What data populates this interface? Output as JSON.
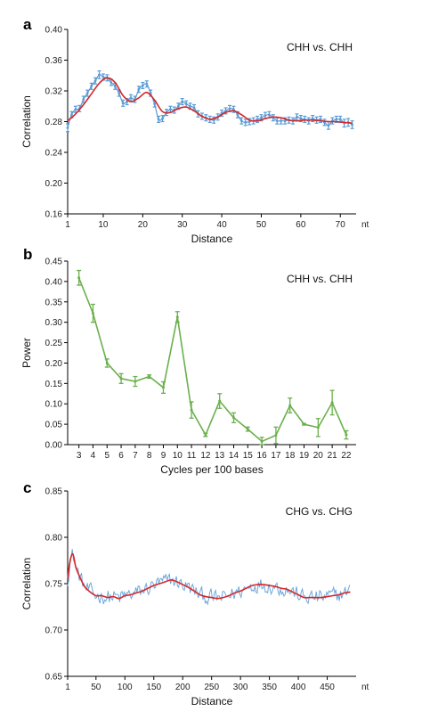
{
  "chart_data": [
    {
      "type": "line",
      "panel_label": "a",
      "title": "CHH vs. CHH",
      "xlabel": "Distance",
      "ylabel": "Correlation",
      "x_unit": "nt",
      "xlim": [
        1,
        74
      ],
      "ylim": [
        0.16,
        0.4
      ],
      "xticks": [
        1,
        10,
        20,
        30,
        40,
        50,
        60,
        70
      ],
      "yticks": [
        "0.16",
        "0.20",
        "0.24",
        "0.28",
        "0.32",
        "0.36",
        "0.40"
      ],
      "grid": false,
      "series": [
        {
          "style": "points-with-error-bars",
          "color": "#5b9bd5",
          "x": [
            1,
            2,
            3,
            4,
            5,
            6,
            7,
            8,
            9,
            10,
            11,
            12,
            13,
            14,
            15,
            16,
            17,
            18,
            19,
            20,
            21,
            22,
            23,
            24,
            25,
            26,
            27,
            28,
            29,
            30,
            31,
            32,
            33,
            34,
            35,
            36,
            37,
            38,
            39,
            40,
            41,
            42,
            43,
            44,
            45,
            46,
            47,
            48,
            49,
            50,
            51,
            52,
            53,
            54,
            55,
            56,
            57,
            58,
            59,
            60,
            61,
            62,
            63,
            64,
            65,
            66,
            67,
            68,
            69,
            70,
            71,
            72,
            73
          ],
          "y": [
            0.272,
            0.289,
            0.296,
            0.297,
            0.309,
            0.317,
            0.326,
            0.333,
            0.341,
            0.338,
            0.337,
            0.331,
            0.326,
            0.317,
            0.304,
            0.306,
            0.311,
            0.309,
            0.322,
            0.327,
            0.329,
            0.317,
            0.303,
            0.283,
            0.284,
            0.292,
            0.296,
            0.295,
            0.3,
            0.306,
            0.303,
            0.3,
            0.298,
            0.29,
            0.287,
            0.285,
            0.283,
            0.282,
            0.286,
            0.291,
            0.294,
            0.297,
            0.296,
            0.289,
            0.281,
            0.279,
            0.28,
            0.281,
            0.283,
            0.285,
            0.288,
            0.289,
            0.285,
            0.281,
            0.281,
            0.281,
            0.282,
            0.281,
            0.286,
            0.284,
            0.283,
            0.281,
            0.284,
            0.282,
            0.283,
            0.279,
            0.275,
            0.281,
            0.283,
            0.283,
            0.278,
            0.279,
            0.276
          ],
          "err": [
            0.005,
            0.004,
            0.004,
            0.004,
            0.004,
            0.004,
            0.004,
            0.004,
            0.005,
            0.004,
            0.004,
            0.004,
            0.004,
            0.004,
            0.004,
            0.004,
            0.004,
            0.004,
            0.004,
            0.004,
            0.004,
            0.004,
            0.004,
            0.004,
            0.004,
            0.004,
            0.004,
            0.004,
            0.004,
            0.004,
            0.004,
            0.004,
            0.004,
            0.004,
            0.004,
            0.004,
            0.004,
            0.004,
            0.004,
            0.004,
            0.004,
            0.004,
            0.004,
            0.004,
            0.004,
            0.004,
            0.004,
            0.004,
            0.004,
            0.004,
            0.004,
            0.004,
            0.004,
            0.004,
            0.004,
            0.004,
            0.004,
            0.004,
            0.004,
            0.004,
            0.004,
            0.004,
            0.004,
            0.004,
            0.004,
            0.004,
            0.005,
            0.004,
            0.004,
            0.004,
            0.005,
            0.005,
            0.005
          ]
        },
        {
          "style": "smooth-line",
          "color": "#d62728",
          "x": [
            1,
            3,
            5,
            7,
            9,
            11,
            13,
            15,
            17,
            19,
            21,
            23,
            25,
            27,
            29,
            31,
            33,
            35,
            37,
            39,
            41,
            43,
            45,
            47,
            49,
            51,
            53,
            55,
            57,
            59,
            61,
            63,
            65,
            67,
            69,
            71,
            73
          ],
          "y": [
            0.281,
            0.29,
            0.302,
            0.316,
            0.33,
            0.337,
            0.331,
            0.314,
            0.306,
            0.311,
            0.318,
            0.308,
            0.293,
            0.292,
            0.297,
            0.299,
            0.294,
            0.287,
            0.283,
            0.286,
            0.292,
            0.294,
            0.289,
            0.282,
            0.281,
            0.284,
            0.286,
            0.285,
            0.282,
            0.281,
            0.282,
            0.282,
            0.281,
            0.28,
            0.28,
            0.279,
            0.278
          ]
        }
      ]
    },
    {
      "type": "line",
      "panel_label": "b",
      "title": "CHH vs. CHH",
      "xlabel": "Cycles per 100 bases",
      "ylabel": "Power",
      "xlim": [
        2.2,
        22.7
      ],
      "ylim": [
        0,
        0.45
      ],
      "xticks": [
        3,
        4,
        5,
        6,
        7,
        8,
        9,
        10,
        11,
        12,
        13,
        14,
        15,
        16,
        17,
        18,
        19,
        20,
        21,
        22
      ],
      "yticks": [
        "0.00",
        "0.05",
        "0.10",
        "0.15",
        "0.20",
        "0.25",
        "0.30",
        "0.35",
        "0.40",
        "0.45"
      ],
      "grid": false,
      "series": [
        {
          "style": "line-with-error-bars",
          "color": "#6ab04c",
          "x": [
            3,
            4,
            5,
            6,
            7,
            8,
            9,
            10,
            11,
            12,
            13,
            14,
            15,
            16,
            17,
            18,
            19,
            20,
            21,
            22
          ],
          "y": [
            0.409,
            0.322,
            0.2,
            0.162,
            0.155,
            0.167,
            0.14,
            0.313,
            0.085,
            0.024,
            0.107,
            0.066,
            0.038,
            0.008,
            0.023,
            0.096,
            0.05,
            0.042,
            0.103,
            0.024
          ],
          "err": [
            0.018,
            0.022,
            0.01,
            0.012,
            0.012,
            0.004,
            0.014,
            0.013,
            0.02,
            0.004,
            0.018,
            0.012,
            0.005,
            0.01,
            0.02,
            0.018,
            0.002,
            0.022,
            0.03,
            0.01
          ]
        }
      ]
    },
    {
      "type": "line",
      "panel_label": "c",
      "title": "CHG vs. CHG",
      "xlabel": "Distance",
      "ylabel": "Correlation",
      "x_unit": "nt",
      "xlim": [
        1,
        500
      ],
      "ylim": [
        0.65,
        0.85
      ],
      "xticks": [
        1,
        50,
        100,
        150,
        200,
        250,
        300,
        350,
        400,
        450
      ],
      "yticks": [
        "0.65",
        "0.70",
        "0.75",
        "0.80",
        "0.85"
      ],
      "grid": false,
      "series": [
        {
          "style": "noisy-line",
          "color": "#6fa8dc",
          "x_start": 1,
          "x_end": 490,
          "x_step": 2,
          "noise_amplitude": 0.012,
          "follows_smooth_series": true
        },
        {
          "style": "smooth-line",
          "color": "#d62728",
          "x": [
            1,
            5,
            10,
            15,
            20,
            30,
            40,
            50,
            60,
            70,
            80,
            90,
            100,
            110,
            120,
            130,
            140,
            150,
            160,
            170,
            180,
            190,
            200,
            210,
            220,
            230,
            240,
            250,
            260,
            270,
            280,
            290,
            300,
            310,
            320,
            330,
            340,
            350,
            360,
            370,
            380,
            390,
            400,
            410,
            420,
            430,
            440,
            450,
            460,
            470,
            480,
            490
          ],
          "y": [
            0.755,
            0.774,
            0.782,
            0.768,
            0.76,
            0.747,
            0.741,
            0.737,
            0.737,
            0.735,
            0.736,
            0.734,
            0.737,
            0.738,
            0.74,
            0.742,
            0.745,
            0.748,
            0.75,
            0.752,
            0.754,
            0.752,
            0.749,
            0.746,
            0.742,
            0.738,
            0.736,
            0.735,
            0.734,
            0.735,
            0.737,
            0.74,
            0.742,
            0.745,
            0.748,
            0.749,
            0.749,
            0.748,
            0.747,
            0.745,
            0.744,
            0.741,
            0.738,
            0.735,
            0.735,
            0.735,
            0.735,
            0.736,
            0.737,
            0.738,
            0.74,
            0.741
          ]
        }
      ]
    }
  ]
}
